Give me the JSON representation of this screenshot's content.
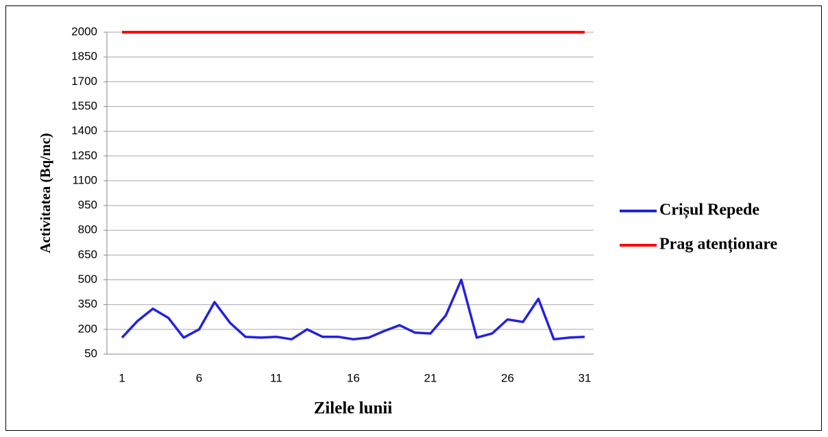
{
  "chart_data": {
    "type": "line",
    "x_label": "Zilele lunii",
    "y_label": "Activitatea (Bq/mc)",
    "x": [
      1,
      2,
      3,
      4,
      5,
      6,
      7,
      8,
      9,
      10,
      11,
      12,
      13,
      14,
      15,
      16,
      17,
      18,
      19,
      20,
      21,
      22,
      23,
      24,
      25,
      26,
      27,
      28,
      29,
      30,
      31
    ],
    "xlim": [
      1,
      31
    ],
    "xticks": [
      1,
      6,
      11,
      16,
      21,
      26,
      31
    ],
    "ylim": [
      50,
      2000
    ],
    "yticks": [
      50,
      200,
      350,
      500,
      650,
      800,
      950,
      1100,
      1250,
      1400,
      1550,
      1700,
      1850,
      2000
    ],
    "grid": true,
    "legend": "right",
    "series": [
      {
        "name": "Crișul Repede",
        "color": "#2222dd",
        "values": [
          150,
          250,
          325,
          270,
          150,
          200,
          365,
          240,
          155,
          150,
          155,
          140,
          200,
          155,
          155,
          140,
          150,
          190,
          225,
          180,
          175,
          285,
          500,
          150,
          175,
          260,
          245,
          385,
          140,
          150,
          155
        ]
      },
      {
        "name": "Prag atenționare",
        "color": "#ff0000",
        "values": [
          2000,
          2000,
          2000,
          2000,
          2000,
          2000,
          2000,
          2000,
          2000,
          2000,
          2000,
          2000,
          2000,
          2000,
          2000,
          2000,
          2000,
          2000,
          2000,
          2000,
          2000,
          2000,
          2000,
          2000,
          2000,
          2000,
          2000,
          2000,
          2000,
          2000,
          2000
        ]
      }
    ]
  }
}
